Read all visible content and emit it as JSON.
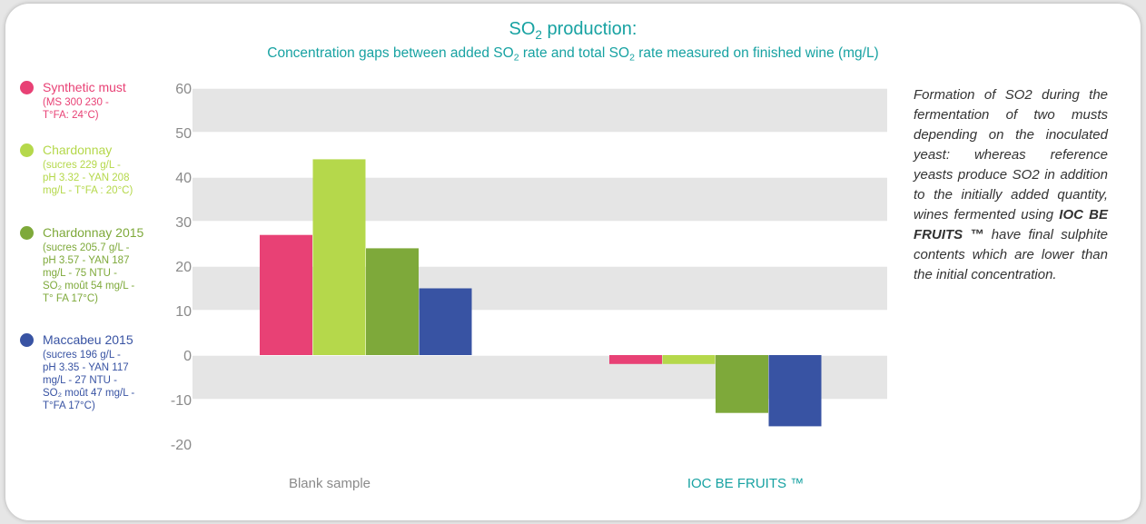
{
  "title": {
    "pre": "SO",
    "sub": "2",
    "post": " production:"
  },
  "subtitle": {
    "p1": "Concentration gaps between added SO",
    "s1": "2",
    "p2": " rate and total SO",
    "s2": "2",
    "p3": " rate measured on finished wine (mg/L)"
  },
  "legend": [
    {
      "name": "Synthetic must",
      "detail": "(MS 300 230 -\nT°FA: 24°C)",
      "color": "#e84175"
    },
    {
      "name": "Chardonnay",
      "detail": "(sucres 229 g/L -\npH 3.32 - YAN 208\nmg/L - T°FA : 20°C)",
      "color": "#b5d84b"
    },
    {
      "name": "Chardonnay 2015",
      "detail": "(sucres 205.7 g/L -\npH 3.57 - YAN 187\nmg/L - 75 NTU -\nSO₂ moût 54 mg/L -\nT° FA 17°C)",
      "color": "#7ea93a"
    },
    {
      "name": "Maccabeu 2015",
      "detail": "(sucres 196 g/L -\npH 3.35 - YAN 117\nmg/L - 27 NTU -\nSO₂ moût 47 mg/L -\nT°FA 17°C)",
      "color": "#3853a3"
    }
  ],
  "note": {
    "text1": "Formation of SO2 during the fermentation of two musts depending on the inoculated yeast: whereas reference yeasts produce SO2 in addition to the initially added quantity, wines fermented using ",
    "bold": "IOC BE FRUITS ™",
    "text2": " have final sulphite contents which are lower than the initial concentration."
  },
  "chart_data": {
    "type": "bar",
    "categories": [
      "Blank sample",
      "IOC BE FRUITS ™"
    ],
    "category_colors": [
      "#8a8a8a",
      "#17a2a2"
    ],
    "series": [
      {
        "name": "Synthetic must",
        "color": "#e84175",
        "values": [
          27,
          -2
        ]
      },
      {
        "name": "Chardonnay",
        "color": "#b5d84b",
        "values": [
          44,
          -2
        ]
      },
      {
        "name": "Chardonnay 2015",
        "color": "#7ea93a",
        "values": [
          24,
          -13
        ]
      },
      {
        "name": "Maccabeu 2015",
        "color": "#3853a3",
        "values": [
          15,
          -16
        ]
      }
    ],
    "ylim": [
      -20,
      60
    ],
    "yticks": [
      60,
      50,
      40,
      30,
      20,
      10,
      0,
      -10,
      -20
    ],
    "grid": true,
    "legend_position": "left"
  }
}
